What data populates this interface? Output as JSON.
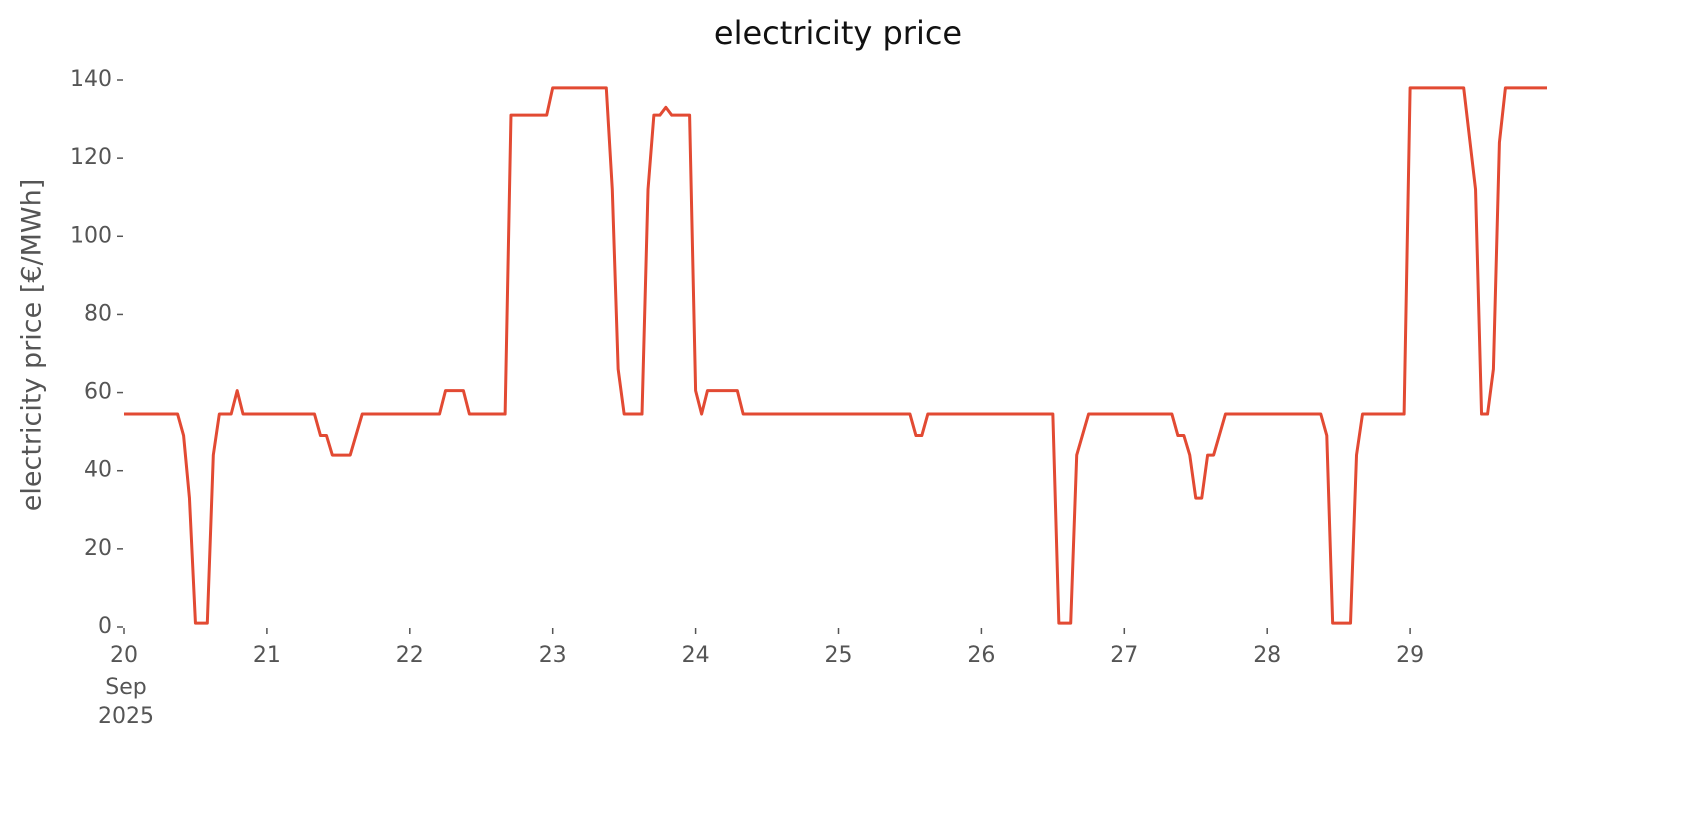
{
  "chart_data": {
    "type": "line",
    "title": "electricity price",
    "ylabel": "electricity price [€/MWh]",
    "x_month_label": "Sep",
    "x_year_label": "2025",
    "x": [
      20,
      20.375,
      20.417,
      20.458,
      20.5,
      20.583,
      20.625,
      20.667,
      20.75,
      20.792,
      20.833,
      21.333,
      21.375,
      21.417,
      21.458,
      21.583,
      21.667,
      22.208,
      22.25,
      22.375,
      22.417,
      22.667,
      22.708,
      22.958,
      23,
      23.375,
      23.417,
      23.458,
      23.5,
      23.625,
      23.667,
      23.708,
      23.75,
      23.792,
      23.833,
      23.958,
      24,
      24.042,
      24.083,
      24.292,
      24.333,
      25.5,
      25.542,
      25.583,
      25.625,
      26.5,
      26.542,
      26.625,
      26.667,
      26.75,
      27.333,
      27.375,
      27.417,
      27.458,
      27.5,
      27.542,
      27.583,
      27.625,
      27.708,
      28.375,
      28.417,
      28.458,
      28.583,
      28.625,
      28.667,
      28.958,
      29,
      29.375,
      29.458,
      29.5,
      29.542,
      29.583,
      29.625,
      29.667,
      29.958
    ],
    "series": [
      {
        "name": "electricity price",
        "color": "#e24a33",
        "values": [
          54.5,
          54.5,
          49,
          33,
          1,
          1,
          44,
          54.5,
          54.5,
          60.5,
          54.5,
          54.5,
          49,
          49,
          44,
          44,
          54.5,
          54.5,
          60.5,
          60.5,
          54.5,
          54.5,
          131,
          131,
          138,
          138,
          112,
          66,
          54.5,
          54.5,
          112,
          131,
          131,
          133,
          131,
          131,
          60.5,
          54.5,
          60.5,
          60.5,
          54.5,
          54.5,
          49,
          49,
          54.5,
          54.5,
          1,
          1,
          44,
          54.5,
          54.5,
          49,
          49,
          44,
          33,
          33,
          44,
          44,
          54.5,
          54.5,
          49,
          1,
          1,
          44,
          54.5,
          54.5,
          138,
          138,
          112,
          54.5,
          54.5,
          66,
          124,
          138,
          138
        ]
      }
    ],
    "xlim": [
      20,
      29.958
    ],
    "xticks": [
      20,
      21,
      22,
      23,
      24,
      25,
      26,
      27,
      28,
      29
    ],
    "ylim": [
      0,
      140
    ],
    "yticks": [
      0,
      20,
      40,
      60,
      80,
      100,
      120,
      140
    ],
    "grid": false
  }
}
